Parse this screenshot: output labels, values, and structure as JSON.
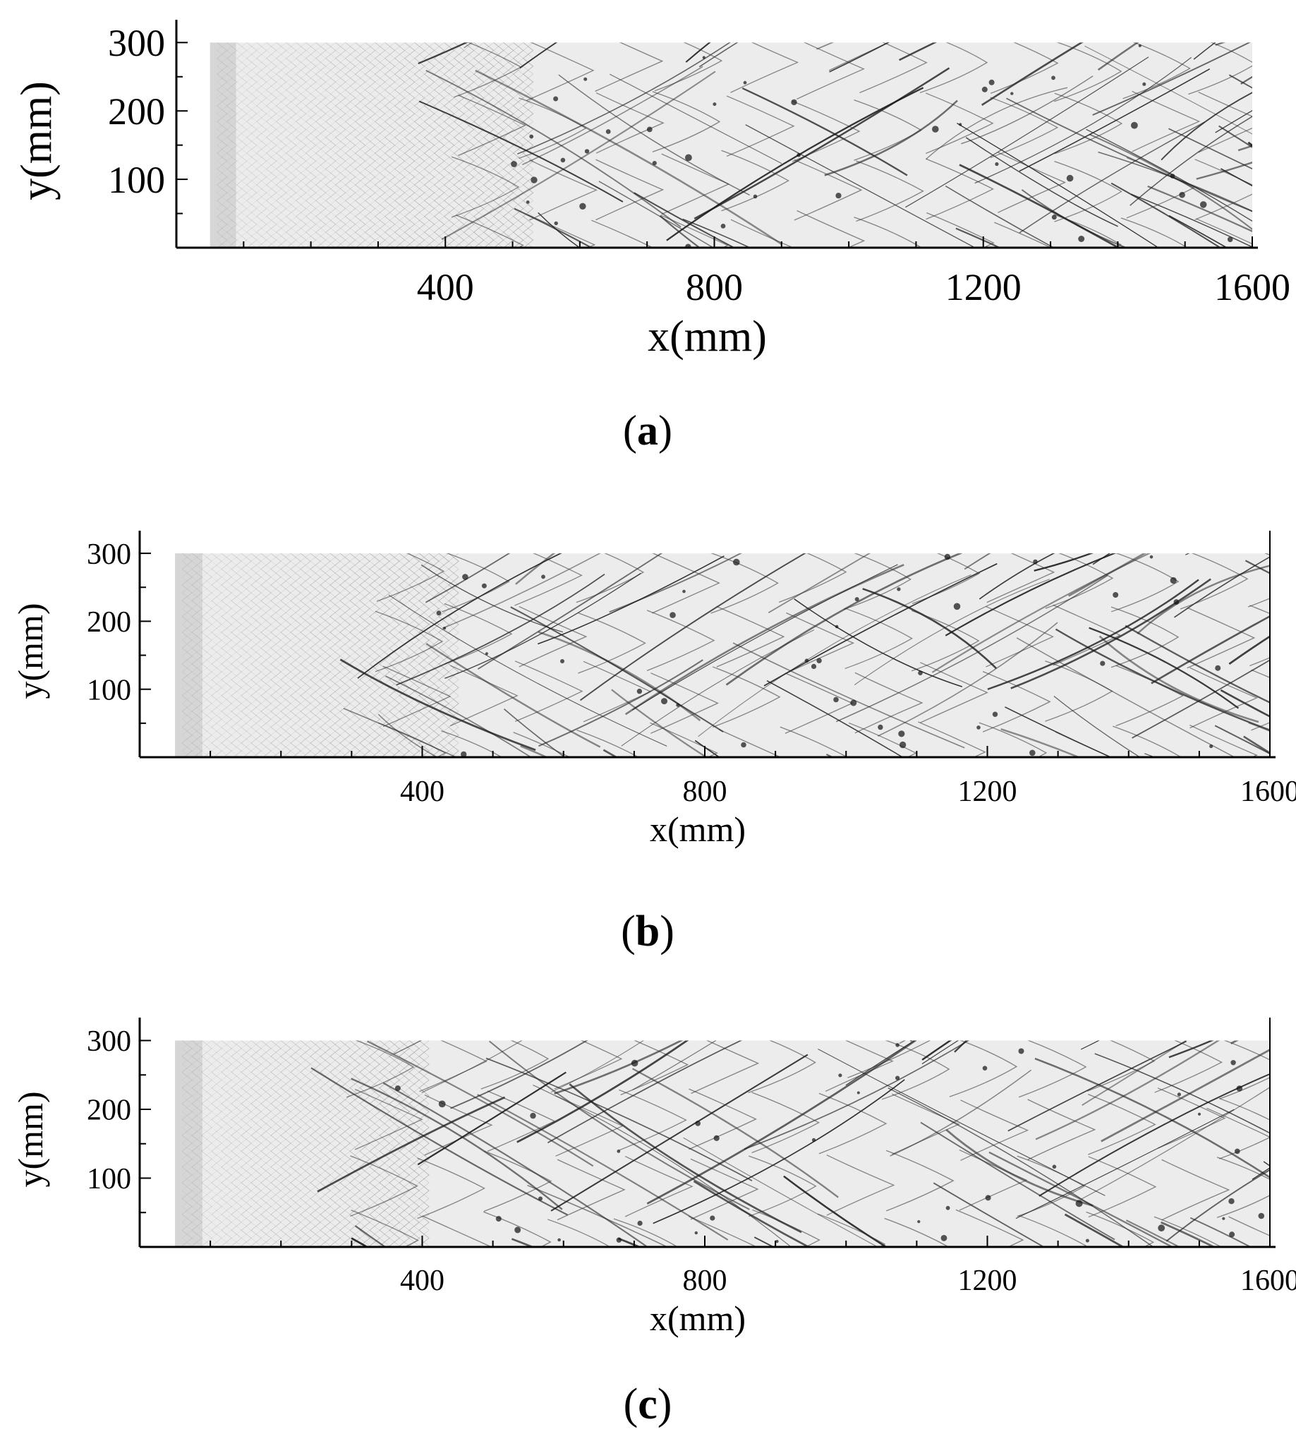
{
  "figure": {
    "panels": [
      {
        "caption_open": "(",
        "caption_letter": "a",
        "caption_close": ")",
        "xlabel": "x(mm)",
        "ylabel": "y(mm)",
        "xticks": [
          "400",
          "800",
          "1200",
          "1600"
        ],
        "yticks": [
          "100",
          "200",
          "300"
        ]
      },
      {
        "caption_open": "(",
        "caption_letter": "b",
        "caption_close": ")",
        "xlabel": "x(mm)",
        "ylabel": "y(mm)",
        "xticks": [
          "400",
          "800",
          "1200",
          "1600"
        ],
        "yticks": [
          "100",
          "200",
          "300"
        ]
      },
      {
        "caption_open": "(",
        "caption_letter": "c",
        "caption_close": ")",
        "xlabel": "x(mm)",
        "ylabel": "y(mm)",
        "xticks": [
          "400",
          "800",
          "1200",
          "1600"
        ],
        "yticks": [
          "100",
          "200",
          "300"
        ]
      }
    ]
  },
  "chart_data": [
    {
      "type": "heatmap",
      "panel": "(a)",
      "description_kind": "smoked-foil cellular detonation pattern (grayscale)",
      "xlabel": "x(mm)",
      "ylabel": "y(mm)",
      "xlim": [
        0,
        1600
      ],
      "ylim": [
        0,
        300
      ],
      "xticks": [
        400,
        800,
        1200,
        1600
      ],
      "yticks": [
        100,
        200,
        300
      ],
      "data_extent": {
        "x": [
          50,
          1600
        ],
        "y": [
          0,
          300
        ]
      },
      "colormap": "grayscale",
      "grid": false,
      "regular_to_irregular_transition_x": 480
    },
    {
      "type": "heatmap",
      "panel": "(b)",
      "xlabel": "x(mm)",
      "ylabel": "y(mm)",
      "xlim": [
        0,
        1600
      ],
      "ylim": [
        0,
        300
      ],
      "xticks": [
        400,
        800,
        1200,
        1600
      ],
      "yticks": [
        100,
        200,
        300
      ],
      "data_extent": {
        "x": [
          50,
          1600
        ],
        "y": [
          0,
          300
        ]
      },
      "colormap": "grayscale",
      "grid": false,
      "regular_to_irregular_transition_x": 400
    },
    {
      "type": "heatmap",
      "panel": "(c)",
      "xlabel": "x(mm)",
      "ylabel": "y(mm)",
      "xlim": [
        0,
        1600
      ],
      "ylim": [
        0,
        300
      ],
      "xticks": [
        400,
        800,
        1200,
        1600
      ],
      "yticks": [
        100,
        200,
        300
      ],
      "data_extent": {
        "x": [
          50,
          1600
        ],
        "y": [
          0,
          300
        ]
      },
      "colormap": "grayscale",
      "grid": false,
      "regular_to_irregular_transition_x": 360
    }
  ],
  "colors": {
    "axis": "#000000",
    "foil_background": "#ececec",
    "cell_lines": "#1a1a1a",
    "initial_band": "#d6d6d6"
  }
}
